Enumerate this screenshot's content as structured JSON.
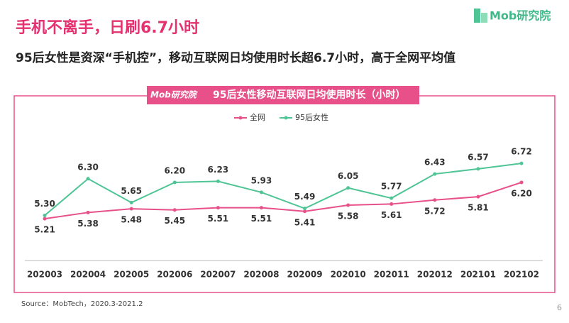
{
  "header": {
    "title": "手机不离手，日刷6.7小时",
    "subtitle": "95后女性是资深“手机控”，移动互联网日均使用时长超6.7小时，高于全网平均值",
    "logo": "Mob研究院"
  },
  "chart_data": {
    "type": "line",
    "title": "95后女性移动互联网日均使用时长（小时）",
    "badge": "Mob研究院",
    "categories": [
      "202003",
      "202004",
      "202005",
      "202006",
      "202007",
      "202008",
      "202009",
      "202010",
      "202011",
      "202012",
      "202101",
      "202102"
    ],
    "series": [
      {
        "name": "全网",
        "color": "#e8508a",
        "values": [
          5.21,
          5.38,
          5.48,
          5.45,
          5.51,
          5.51,
          5.41,
          5.58,
          5.61,
          5.72,
          5.81,
          6.2
        ],
        "value_labels": [
          "5.21",
          "5.38",
          "5.48",
          "5.45",
          "5.51",
          "5.51",
          "5.41",
          "5.58",
          "5.61",
          "5.72",
          "5.81",
          "6.20"
        ]
      },
      {
        "name": "95后女性",
        "color": "#4fc596",
        "values": [
          5.3,
          6.3,
          5.65,
          6.2,
          6.23,
          5.93,
          5.49,
          6.05,
          5.77,
          6.43,
          6.57,
          6.72
        ],
        "value_labels": [
          "5.30",
          "6.30",
          "5.65",
          "6.20",
          "6.23",
          "5.93",
          "5.49",
          "6.05",
          "5.77",
          "6.43",
          "6.57",
          "6.72"
        ]
      }
    ],
    "ylim": [
      4.07,
      8.27
    ]
  },
  "footer": {
    "source": "Source：MobTech，2020.3-2021.2",
    "page": "6"
  }
}
